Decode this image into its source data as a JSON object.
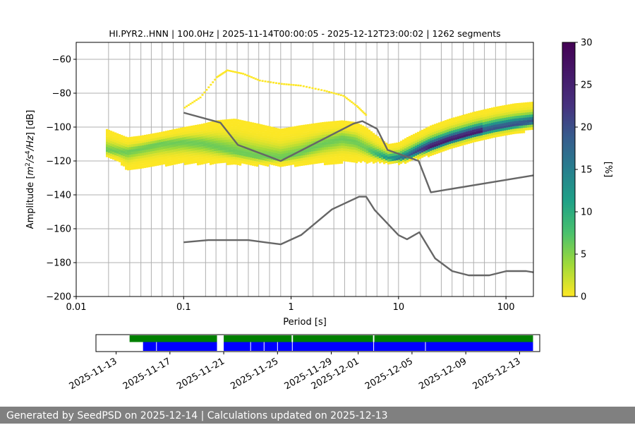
{
  "chart_data": {
    "type": "heatmap",
    "title": "HI.PYR2..HNN | 100.0Hz | 2025-11-14T00:00:05 - 2025-12-12T23:00:02 | 1262 segments",
    "xlabel": "Period [s]",
    "ylabel": "Amplitude [m²/s⁴/Hz] [dB]",
    "ylabel_parts": {
      "prefix": "Amplitude [",
      "m": "m",
      "two": "2",
      "slash_s": "/s",
      "four": "4",
      "hz": "/Hz",
      "suffix": "] [dB]"
    },
    "x_scale": "log",
    "xlim": [
      0.01,
      180
    ],
    "ylim": [
      -200,
      -50
    ],
    "x_ticks": [
      {
        "value": 0.01,
        "label": "0.01"
      },
      {
        "value": 0.1,
        "label": "0.1"
      },
      {
        "value": 1,
        "label": "1"
      },
      {
        "value": 10,
        "label": "10"
      },
      {
        "value": 100,
        "label": "100"
      }
    ],
    "y_ticks": [
      {
        "value": -60,
        "label": "−60"
      },
      {
        "value": -80,
        "label": "−80"
      },
      {
        "value": -100,
        "label": "−100"
      },
      {
        "value": -120,
        "label": "−120"
      },
      {
        "value": -140,
        "label": "−140"
      },
      {
        "value": -160,
        "label": "−160"
      },
      {
        "value": -180,
        "label": "−180"
      },
      {
        "value": -200,
        "label": "−200"
      }
    ],
    "grid_periods": [
      0.02,
      0.0315,
      0.04,
      0.05,
      0.063,
      0.08,
      0.1,
      0.16,
      0.2,
      0.25,
      0.315,
      0.4,
      0.5,
      0.63,
      0.8,
      1.0,
      1.6,
      2.5,
      3.15,
      4.0,
      5.0,
      6.3,
      8.0,
      10.0,
      16,
      25,
      31.5,
      40,
      50,
      63,
      80,
      100
    ],
    "colorbar": {
      "label": "[%]",
      "range": [
        0,
        30
      ],
      "ticks": [
        {
          "value": 0,
          "label": "0"
        },
        {
          "value": 5,
          "label": "5"
        },
        {
          "value": 10,
          "label": "10"
        },
        {
          "value": 15,
          "label": "15"
        },
        {
          "value": 20,
          "label": "20"
        },
        {
          "value": 25,
          "label": "25"
        },
        {
          "value": 30,
          "label": "30"
        }
      ]
    },
    "nhnm": {
      "name": "NHNM",
      "color": "#666666",
      "x": [
        0.1,
        0.22,
        0.32,
        0.8,
        3.8,
        4.6,
        6.3,
        7.9,
        15.4,
        20.0,
        180
      ],
      "y": [
        -91.5,
        -97.4,
        -110.5,
        -120.0,
        -98.0,
        -96.5,
        -101.0,
        -113.5,
        -120.0,
        -138.5,
        -128.5
      ]
    },
    "nlnm": {
      "name": "NLNM",
      "color": "#666666",
      "x": [
        0.1,
        0.17,
        0.4,
        0.8,
        1.24,
        2.4,
        4.3,
        5.0,
        6.0,
        10.0,
        12.0,
        15.6,
        21.9,
        31.6,
        45.0,
        70.0,
        101.0,
        154.0,
        180
      ],
      "y": [
        -168.0,
        -166.7,
        -166.7,
        -169.2,
        -163.7,
        -148.6,
        -141.1,
        -141.1,
        -149.0,
        -163.8,
        -166.2,
        -162.1,
        -177.5,
        -185.0,
        -187.5,
        -187.5,
        -185.0,
        -185.0,
        -185.7
      ]
    },
    "psd_band": {
      "x": [
        0.019,
        0.025,
        0.03,
        0.04,
        0.06,
        0.1,
        0.15,
        0.2,
        0.3,
        0.5,
        0.8,
        1.2,
        2.0,
        3.0,
        4.0,
        5.0,
        6.0,
        8.0,
        10.0,
        12.0,
        15.0,
        20.0,
        30.0,
        50.0,
        80.0,
        120.0,
        180.0
      ],
      "mode": [
        -113,
        -114,
        -114,
        -112,
        -109,
        -108,
        -109,
        -111,
        -114,
        -117,
        -118,
        -115,
        -109,
        -106,
        -108,
        -112,
        -115,
        -118,
        -118,
        -117,
        -114,
        -111,
        -107,
        -103,
        -100,
        -98,
        -96
      ],
      "low": [
        -117,
        -120,
        -125,
        -123,
        -122,
        -121,
        -121,
        -121,
        -121,
        -122,
        -122,
        -122,
        -121,
        -120,
        -120,
        -120,
        -120,
        -121,
        -121,
        -120,
        -118,
        -116,
        -112,
        -108,
        -105,
        -103,
        -101
      ],
      "high": [
        -101,
        -104,
        -106,
        -105,
        -103,
        -100,
        -98,
        -96,
        -95,
        -98,
        -101,
        -99,
        -97,
        -96,
        -97,
        -100,
        -104,
        -110,
        -109,
        -106,
        -103,
        -99,
        -95,
        -91,
        -88,
        -86,
        -85
      ]
    },
    "psd_outliers": {
      "x": [
        0.1,
        0.14,
        0.2,
        0.25,
        0.35,
        0.5,
        0.8,
        1.2,
        2.0,
        3.0,
        4.0,
        5.0
      ],
      "y": [
        -88,
        -82,
        -70,
        -66,
        -68,
        -72,
        -74,
        -75,
        -78,
        -81,
        -87,
        -93
      ]
    },
    "timeline": {
      "tick_labels": [
        "2025-11-13",
        "2025-11-17",
        "2025-11-21",
        "2025-11-25",
        "2025-11-29",
        "2025-12-01",
        "2025-12-05",
        "2025-12-09",
        "2025-12-13"
      ],
      "tick_days": [
        13,
        17,
        21,
        25,
        29,
        31,
        35,
        39,
        43
      ],
      "xlim_days": [
        11.5,
        44.5
      ],
      "green_segments": [
        [
          14.0,
          20.5
        ],
        [
          21.0,
          26.05
        ],
        [
          26.15,
          32.1
        ],
        [
          32.2,
          44.0
        ]
      ],
      "blue_segments": [
        [
          15.0,
          20.5
        ],
        [
          21.0,
          44.0
        ]
      ],
      "blue_gaps": [
        16.0,
        23.0,
        24.0,
        25.0,
        26.1,
        32.15,
        36.0
      ],
      "green_color": "#008000",
      "blue_color": "#0000ff"
    }
  },
  "footer": {
    "text": "Generated by SeedPSD on 2025-12-14 | Calculations updated on 2025-12-13"
  }
}
